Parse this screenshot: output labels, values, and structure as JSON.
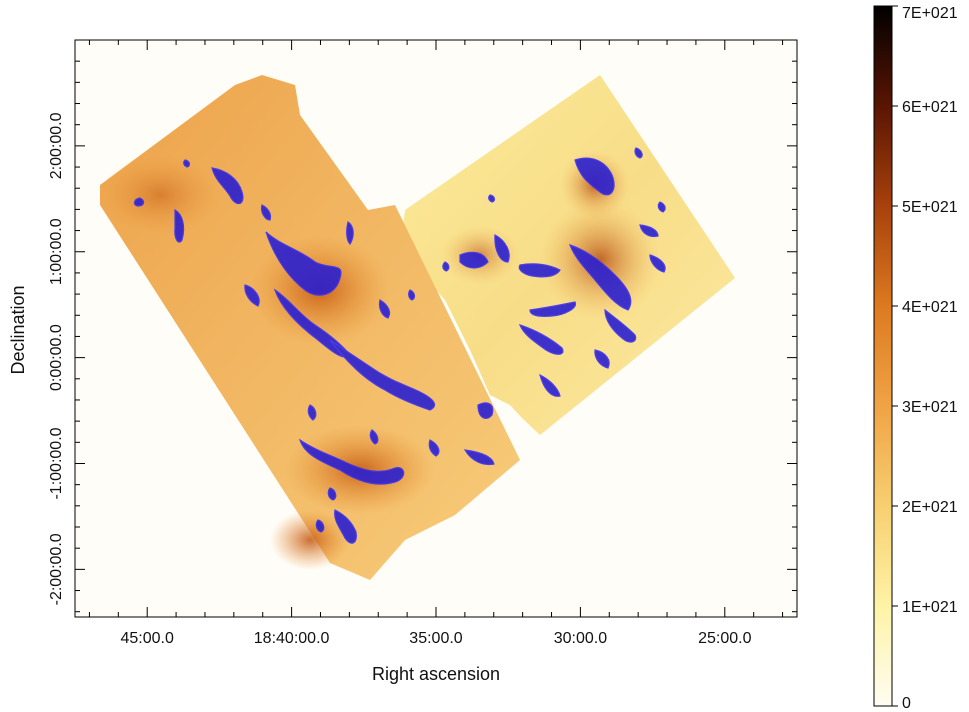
{
  "chart_data": {
    "type": "heatmap",
    "title": "",
    "xlabel": "Right ascension",
    "ylabel": "Declination",
    "x_ticks": [
      "45:00.0",
      "18:40:00.0",
      "35:00.0",
      "30:00.0",
      "25:00.0"
    ],
    "y_ticks": [
      "2:00:00.0",
      "1:00:00.0",
      "0:00:00.0",
      "-1:00:00.0",
      "-2:00:00.0"
    ],
    "x_tick_minutes": [
      45,
      40,
      35,
      30,
      25
    ],
    "y_tick_degrees": [
      2,
      1,
      0,
      -1,
      -2
    ],
    "xlim_minutes": [
      47.5,
      22.5
    ],
    "ylim_degrees": [
      -2.45,
      3.0
    ],
    "colorbar": {
      "range": [
        0,
        7e+21
      ],
      "tick_values": [
        0,
        1e+21,
        2e+21,
        3e+21,
        4e+21,
        5e+21,
        6e+21,
        7e+21
      ],
      "tick_labels": [
        "0",
        "1E+021",
        "2E+021",
        "3E+021",
        "4E+021",
        "5E+021",
        "6E+021",
        "7E+021"
      ],
      "colormap": [
        "#fffdf2",
        "#fef3a6",
        "#f7cf70",
        "#f0a345",
        "#dd7a1f",
        "#a8410c",
        "#5a1503",
        "#000000"
      ]
    },
    "contour_color": "#2a1fd0",
    "grid": false,
    "legend": "none"
  }
}
